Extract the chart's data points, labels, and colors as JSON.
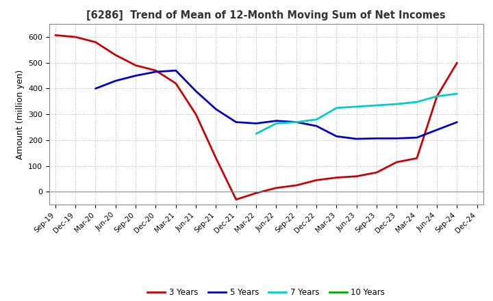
{
  "title": "[6286]  Trend of Mean of 12-Month Moving Sum of Net Incomes",
  "ylabel": "Amount (million yen)",
  "background_color": "#ffffff",
  "plot_bg_color": "#ffffff",
  "grid_color": "#aaaaaa",
  "ylim": [
    -50,
    650
  ],
  "yticks": [
    0,
    100,
    200,
    300,
    400,
    500,
    600
  ],
  "series": {
    "3 Years": {
      "color": "#cc0000",
      "data": [
        [
          "Sep-19",
          607
        ],
        [
          "Dec-19",
          600
        ],
        [
          "Mar-20",
          580
        ],
        [
          "Jun-20",
          530
        ],
        [
          "Sep-20",
          490
        ],
        [
          "Dec-20",
          470
        ],
        [
          "Mar-21",
          420
        ],
        [
          "Jun-21",
          300
        ],
        [
          "Sep-21",
          130
        ],
        [
          "Dec-21",
          -30
        ],
        [
          "Mar-22",
          -5
        ],
        [
          "Jun-22",
          15
        ],
        [
          "Sep-22",
          25
        ],
        [
          "Dec-22",
          45
        ],
        [
          "Mar-23",
          55
        ],
        [
          "Jun-23",
          60
        ],
        [
          "Sep-23",
          75
        ],
        [
          "Dec-23",
          115
        ],
        [
          "Mar-24",
          130
        ],
        [
          "Jun-24",
          370
        ],
        [
          "Sep-24",
          500
        ],
        [
          "Dec-24",
          null
        ]
      ]
    },
    "5 Years": {
      "color": "#0000cc",
      "data": [
        [
          "Sep-19",
          null
        ],
        [
          "Dec-19",
          null
        ],
        [
          "Mar-20",
          400
        ],
        [
          "Jun-20",
          430
        ],
        [
          "Sep-20",
          450
        ],
        [
          "Dec-20",
          465
        ],
        [
          "Mar-21",
          470
        ],
        [
          "Jun-21",
          390
        ],
        [
          "Sep-21",
          320
        ],
        [
          "Dec-21",
          270
        ],
        [
          "Mar-22",
          265
        ],
        [
          "Jun-22",
          275
        ],
        [
          "Sep-22",
          270
        ],
        [
          "Dec-22",
          255
        ],
        [
          "Mar-23",
          215
        ],
        [
          "Jun-23",
          205
        ],
        [
          "Sep-23",
          207
        ],
        [
          "Dec-23",
          207
        ],
        [
          "Mar-24",
          210
        ],
        [
          "Jun-24",
          240
        ],
        [
          "Sep-24",
          270
        ],
        [
          "Dec-24",
          null
        ]
      ]
    },
    "7 Years": {
      "color": "#00cccc",
      "data": [
        [
          "Sep-19",
          null
        ],
        [
          "Dec-19",
          null
        ],
        [
          "Mar-20",
          null
        ],
        [
          "Jun-20",
          null
        ],
        [
          "Sep-20",
          null
        ],
        [
          "Dec-20",
          null
        ],
        [
          "Mar-21",
          null
        ],
        [
          "Jun-21",
          null
        ],
        [
          "Sep-21",
          null
        ],
        [
          "Dec-21",
          null
        ],
        [
          "Mar-22",
          225
        ],
        [
          "Jun-22",
          265
        ],
        [
          "Sep-22",
          270
        ],
        [
          "Dec-22",
          280
        ],
        [
          "Mar-23",
          325
        ],
        [
          "Jun-23",
          330
        ],
        [
          "Sep-23",
          335
        ],
        [
          "Dec-23",
          340
        ],
        [
          "Mar-24",
          348
        ],
        [
          "Jun-24",
          370
        ],
        [
          "Sep-24",
          380
        ],
        [
          "Dec-24",
          null
        ]
      ]
    },
    "10 Years": {
      "color": "#00aa00",
      "data": [
        [
          "Sep-19",
          null
        ],
        [
          "Dec-19",
          null
        ],
        [
          "Mar-20",
          null
        ],
        [
          "Jun-20",
          null
        ],
        [
          "Sep-20",
          null
        ],
        [
          "Dec-20",
          null
        ],
        [
          "Mar-21",
          null
        ],
        [
          "Jun-21",
          null
        ],
        [
          "Sep-21",
          null
        ],
        [
          "Dec-21",
          null
        ],
        [
          "Mar-22",
          null
        ],
        [
          "Jun-22",
          null
        ],
        [
          "Sep-22",
          null
        ],
        [
          "Dec-22",
          null
        ],
        [
          "Mar-23",
          null
        ],
        [
          "Jun-23",
          null
        ],
        [
          "Sep-23",
          null
        ],
        [
          "Dec-23",
          null
        ],
        [
          "Mar-24",
          null
        ],
        [
          "Jun-24",
          null
        ],
        [
          "Sep-24",
          null
        ],
        [
          "Dec-24",
          null
        ]
      ]
    }
  },
  "xtick_labels": [
    "Sep-19",
    "Dec-19",
    "Mar-20",
    "Jun-20",
    "Sep-20",
    "Dec-20",
    "Mar-21",
    "Jun-21",
    "Sep-21",
    "Dec-21",
    "Mar-22",
    "Jun-22",
    "Sep-22",
    "Dec-22",
    "Mar-23",
    "Jun-23",
    "Sep-23",
    "Dec-23",
    "Mar-24",
    "Jun-24",
    "Sep-24",
    "Dec-24"
  ],
  "legend_order": [
    "3 Years",
    "5 Years",
    "7 Years",
    "10 Years"
  ],
  "legend_colors": [
    "#cc0000",
    "#0000cc",
    "#00cccc",
    "#00aa00"
  ]
}
